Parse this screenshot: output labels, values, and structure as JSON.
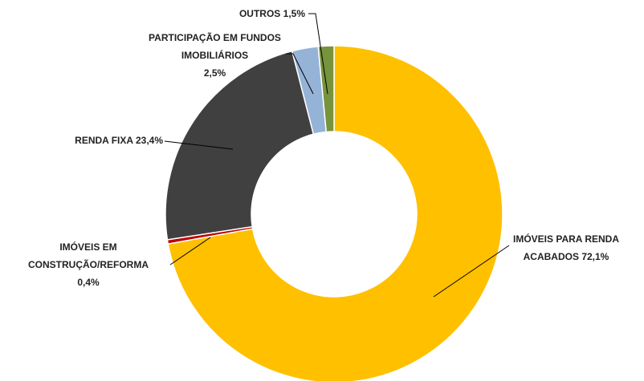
{
  "chart_data": {
    "type": "pie",
    "donut": true,
    "categories": [
      "IMÓVEIS PARA RENDA ACABADOS",
      "IMÓVEIS EM CONSTRUÇÃO/REFORMA",
      "RENDA FIXA",
      "PARTICIPAÇÃO EM FUNDOS IMOBILIÁRIOS",
      "OUTROS"
    ],
    "values": [
      72.1,
      0.4,
      23.4,
      2.5,
      1.5
    ],
    "value_labels": [
      "72,1%",
      "0,4%",
      "23,4%",
      "2,5%",
      "1,5%"
    ],
    "colors": [
      "#FFC000",
      "#C00000",
      "#404040",
      "#95B3D7",
      "#77933C"
    ]
  }
}
